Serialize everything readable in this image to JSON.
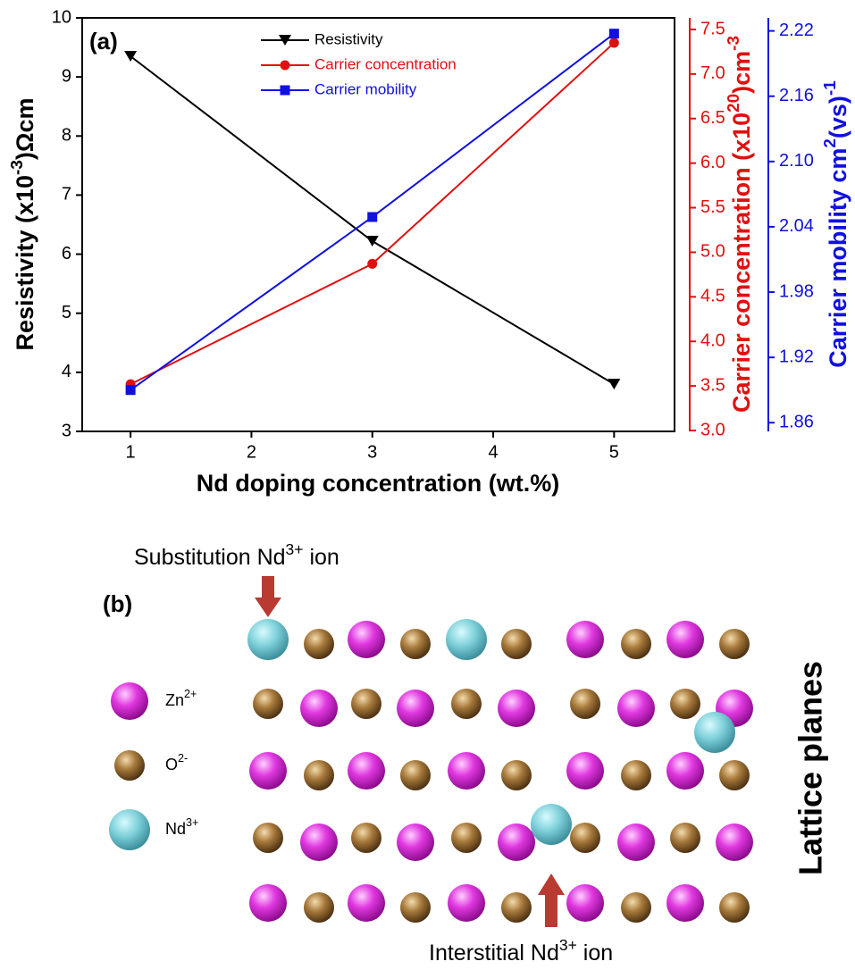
{
  "chart_data": {
    "type": "line",
    "panel_label": "(a)",
    "xlabel": "Nd doping concentration (wt.%)",
    "x": [
      1,
      3,
      5
    ],
    "xlim": [
      0.6,
      5.5
    ],
    "xticks": [
      1,
      2,
      3,
      4,
      5
    ],
    "ylim": [
      3,
      10
    ],
    "yticks": [
      3,
      4,
      5,
      6,
      7,
      8,
      9,
      10
    ],
    "ylabel": [
      "Resistivity (x10",
      "-3",
      ")Ωcm"
    ],
    "y2lim": [
      2.99,
      7.63
    ],
    "y2ticks": [
      {
        "value": 3,
        "label": "3.0"
      },
      3.5,
      {
        "value": 4,
        "label": "4.0"
      },
      4.5,
      {
        "value": 5,
        "label": "5.0"
      },
      5.5,
      {
        "value": 6,
        "label": "6.0"
      },
      6.5,
      {
        "value": 7,
        "label": "7.0"
      },
      7.5
    ],
    "y2label": [
      "Carrier concentration (x10",
      "20",
      ")cm",
      "-3"
    ],
    "y3lim": [
      1.852,
      2.232
    ],
    "y3ticks": [
      1.86,
      1.92,
      1.98,
      2.04,
      {
        "value": 2.1,
        "label": "2.10"
      },
      2.16,
      2.22
    ],
    "y3label": [
      "Carrier mobility cm",
      "2",
      "(vs)",
      "-1"
    ],
    "legend_position": "upper center",
    "series": [
      {
        "name": "Resistivity",
        "color": "#000000",
        "marker": "triangle-down",
        "axis": "y",
        "values": [
          9.35,
          6.22,
          3.8
        ]
      },
      {
        "name": "Carrier concentration",
        "color": "#e01010",
        "marker": "circle",
        "axis": "y2",
        "values": [
          3.52,
          4.87,
          7.35
        ]
      },
      {
        "name": "Carrier mobility",
        "color": "#1010e0",
        "marker": "square",
        "axis": "y3",
        "values": [
          1.89,
          2.049,
          2.2175
        ]
      }
    ]
  },
  "diagram": {
    "panel_label": "(b)",
    "top_label": [
      "Substitution Nd",
      "3+",
      " ion"
    ],
    "bottom_label": [
      "Interstitial Nd",
      "3+",
      " ion"
    ],
    "side_label": "Lattice planes",
    "legend": [
      [
        "Zn",
        "2+"
      ],
      [
        "O",
        "2-"
      ],
      [
        "Nd",
        "3+"
      ]
    ]
  }
}
